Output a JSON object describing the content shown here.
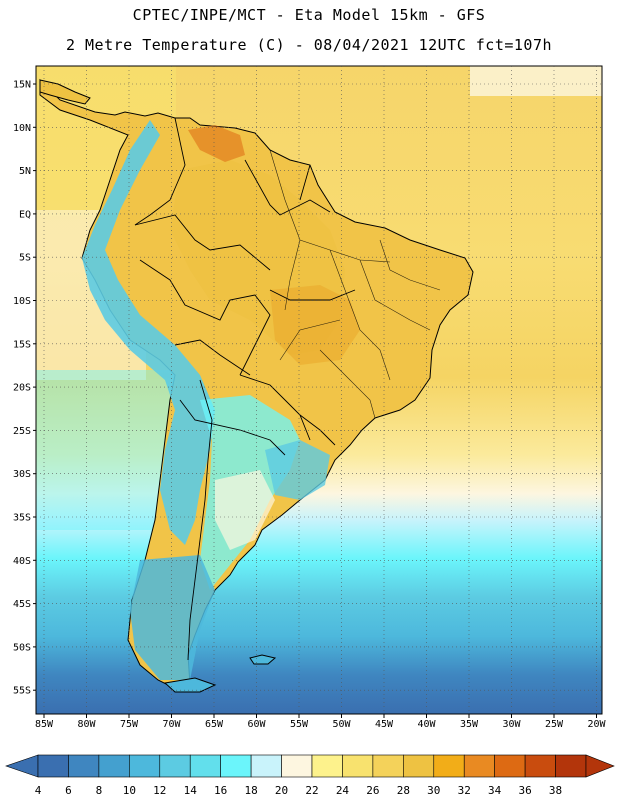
{
  "header": {
    "line1": "CPTEC/INPE/MCT -  Eta Model 15km - GFS",
    "line2": "2 Metre Temperature (C) - 08/04/2021 12UTC fct=107h"
  },
  "axes": {
    "lat_labels": [
      "15N",
      "10N",
      "5N",
      "EQ",
      "5S",
      "10S",
      "15S",
      "20S",
      "25S",
      "30S",
      "35S",
      "40S",
      "45S",
      "50S",
      "55S"
    ],
    "lon_labels": [
      "85W",
      "80W",
      "75W",
      "70W",
      "65W",
      "60W",
      "55W",
      "50W",
      "45W",
      "40W",
      "35W",
      "30W",
      "25W",
      "20W"
    ]
  },
  "colorbar": {
    "labels": [
      "4",
      "6",
      "8",
      "10",
      "12",
      "14",
      "16",
      "18",
      "20",
      "22",
      "24",
      "26",
      "28",
      "30",
      "32",
      "34",
      "36",
      "38"
    ],
    "colors": [
      "#3a6fb0",
      "#3f86c0",
      "#44a0cf",
      "#4db8dc",
      "#5ccbe2",
      "#62dfec",
      "#6bf5fb",
      "#c9f3fb",
      "#fdf6e0",
      "#fdf28c",
      "#f8e26e",
      "#f4d25a",
      "#eec242",
      "#f2ad18",
      "#e98a22",
      "#dd6a13",
      "#c94c0e",
      "#b3350b"
    ]
  },
  "map": {
    "title": "South America 2m temperature forecast",
    "temperature_fields": [
      {
        "region": "Amazon basin",
        "range_c": "26-30"
      },
      {
        "region": "Andes",
        "range_c": "10-18"
      },
      {
        "region": "Patagonia",
        "range_c": "10-16"
      },
      {
        "region": "South Atlantic high latitudes",
        "range_c": "4-8"
      },
      {
        "region": "Tropical Atlantic",
        "range_c": "26-28"
      }
    ]
  }
}
